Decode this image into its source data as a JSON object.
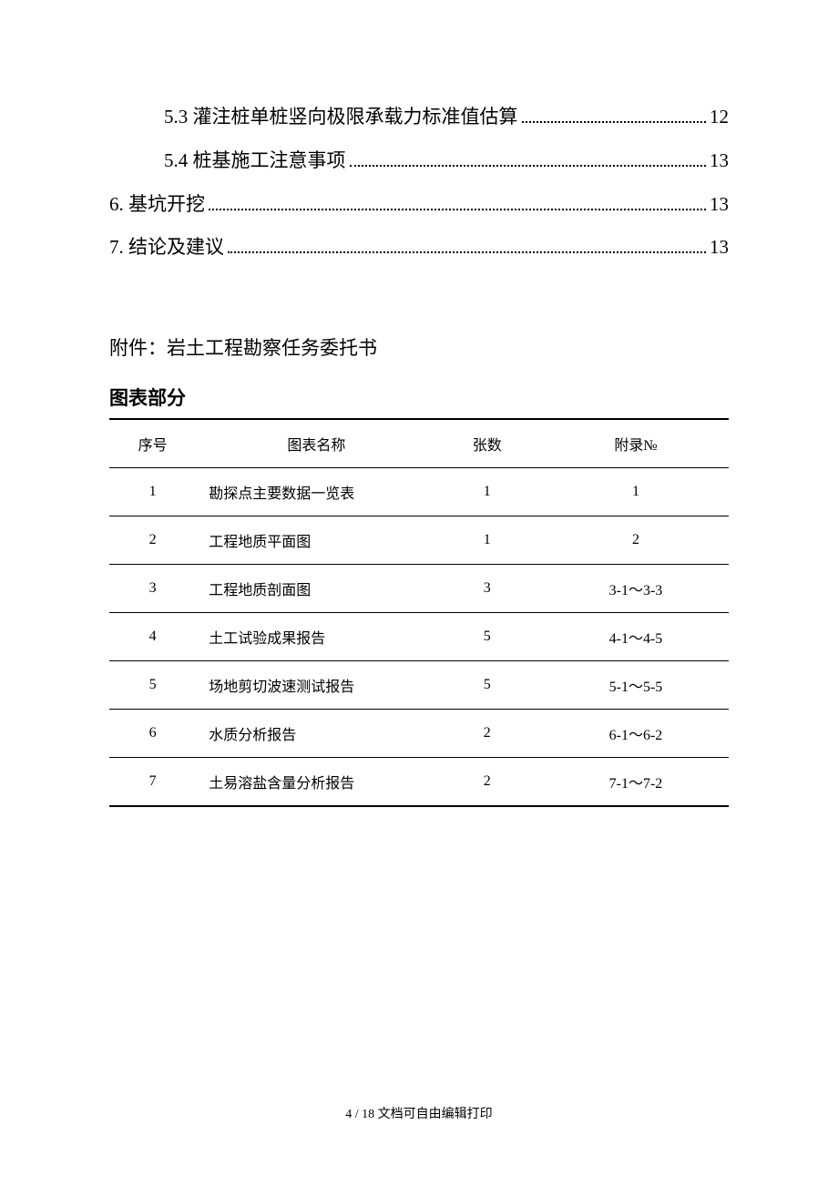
{
  "toc": {
    "items": [
      {
        "label": "5.3 灌注桩单桩竖向极限承载力标准值估算",
        "page": "12",
        "indent": true
      },
      {
        "label": "5.4 桩基施工注意事项",
        "page": "13",
        "indent": true
      },
      {
        "label": "6. 基坑开挖",
        "page": "13",
        "indent": false
      },
      {
        "label": "7. 结论及建议",
        "page": "13",
        "indent": false
      }
    ]
  },
  "attachment": "附件：岩土工程勘察任务委托书",
  "chart_section": {
    "heading": "图表部分",
    "columns": [
      "序号",
      "图表名称",
      "张数",
      "附录№"
    ],
    "rows": [
      [
        "1",
        "勘探点主要数据一览表",
        "1",
        "1"
      ],
      [
        "2",
        "工程地质平面图",
        "1",
        "2"
      ],
      [
        "3",
        "工程地质剖面图",
        "3",
        "3-1～3-3"
      ],
      [
        "4",
        "土工试验成果报告",
        "5",
        "4-1～4-5"
      ],
      [
        "5",
        "场地剪切波速测试报告",
        "5",
        "5-1～5-5"
      ],
      [
        "6",
        "水质分析报告",
        "2",
        "6-1～6-2"
      ],
      [
        "7",
        "土易溶盐含量分析报告",
        "2",
        "7-1～7-2"
      ]
    ]
  },
  "footer": "4 / 18 文档可自由编辑打印"
}
